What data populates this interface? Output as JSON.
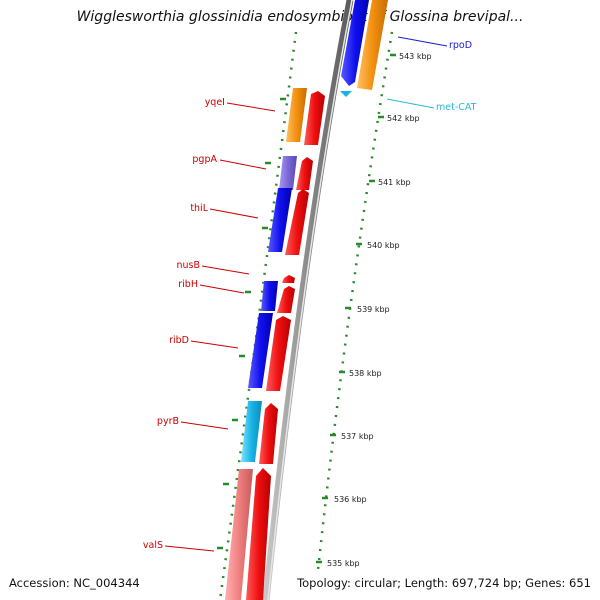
{
  "map": {
    "title": "Wigglesworthia glossinidia endosymbiont of Glossina brevipal...",
    "accession": "Accession: NC_004344",
    "topology": "Topology: circular; Length: 697,724 bp; Genes: 651"
  },
  "colors": {
    "backbone": "#8a8a8a",
    "tick": "#2a8a2a",
    "label_red": "#cc0000",
    "label_blue": "#1a1acc",
    "label_cyan": "#2ab8d8",
    "cds_forward": "#e80f0f",
    "cds_blue": "#0f0fe8",
    "cds_orange": "#f28c0f",
    "cds_purple": "#7b68d8",
    "cds_cyan": "#19b4e6",
    "cds_pink": "#f08080"
  },
  "genes": [
    {
      "name": "yqeI",
      "color": "label_red"
    },
    {
      "name": "pgpA",
      "color": "label_red"
    },
    {
      "name": "thiL",
      "color": "label_red"
    },
    {
      "name": "nusB",
      "color": "label_red"
    },
    {
      "name": "ribH",
      "color": "label_red"
    },
    {
      "name": "ribD",
      "color": "label_red"
    },
    {
      "name": "pyrB",
      "color": "label_red"
    },
    {
      "name": "valS",
      "color": "label_red"
    },
    {
      "name": "rpoD",
      "color": "label_blue"
    },
    {
      "name": "met-CAT",
      "color": "label_cyan"
    }
  ],
  "scale_labels": [
    "543 kbp",
    "542 kbp",
    "541 kbp",
    "540 kbp",
    "539 kbp",
    "538 kbp",
    "537 kbp",
    "536 kbp",
    "535 kbp"
  ]
}
